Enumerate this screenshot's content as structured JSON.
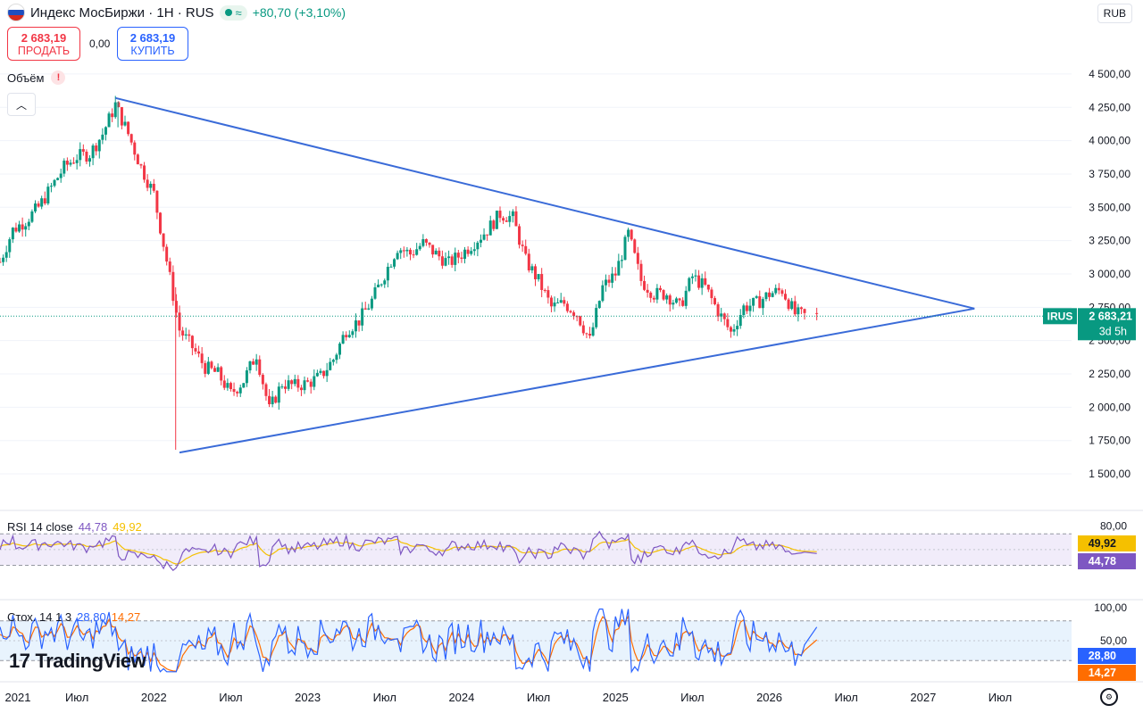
{
  "header": {
    "title": "Индекс МосБиржи · 1H · RUS",
    "status_icon": "dot-icon",
    "wave_icon": "wave-icon",
    "change": "+80,70 (+3,10%)",
    "currency": "RUB"
  },
  "trade": {
    "sell_price": "2 683,19",
    "sell_label": "ПРОДАТЬ",
    "spread": "0,00",
    "buy_price": "2 683,19",
    "buy_label": "КУПИТЬ"
  },
  "volume": {
    "label": "Объём",
    "warn": "!"
  },
  "collapse_icon": "chevron-up-icon",
  "price_axis": {
    "ticks": [
      "4 500,00",
      "4 250,00",
      "4 000,00",
      "3 750,00",
      "3 500,00",
      "3 250,00",
      "3 000,00",
      "2 750,00",
      "2 500,00",
      "2 250,00",
      "2 000,00",
      "1 750,00",
      "1 500,00"
    ],
    "last_tag_symbol": "IRUS",
    "last_tag_price": "2 683,21",
    "last_tag_time": "3d 5h"
  },
  "rsi": {
    "label": "RSI 14 close",
    "value_rsi": "44,78",
    "value_ma": "49,92",
    "ticks": [
      "80,00"
    ],
    "tag_ma": "49,92",
    "tag_rsi": "44,78"
  },
  "stoch": {
    "label": "Стох. 14 1 3",
    "value_k": "28,80",
    "value_d": "14,27",
    "ticks": [
      "100,00",
      "50,00"
    ],
    "tag_k": "28,80",
    "tag_d": "14,27"
  },
  "time_axis": [
    "2021",
    "Июл",
    "2022",
    "Июл",
    "2023",
    "Июл",
    "2024",
    "Июл",
    "2025",
    "Июл",
    "2026",
    "Июл",
    "2027",
    "Июл"
  ],
  "logo_text": "TradingView",
  "colors": {
    "up": "#089981",
    "down": "#f23645",
    "trendline": "#3a6bd8",
    "rsi": "#7e57c2",
    "rsi_ma": "#f5c000",
    "stoch_k": "#2962ff",
    "stoch_d": "#ff6d00",
    "rsi_band": "#f1ecfa",
    "stoch_band": "#e8f3fd",
    "last": "#089981"
  },
  "chart_data": {
    "type": "candlestick",
    "title": "Индекс МосБиржи · 1H · RUS",
    "ylim": [
      1420,
      4620
    ],
    "x_range": [
      "2021-01",
      "2027-10"
    ],
    "price_path": [
      [
        "2021-01",
        3090
      ],
      [
        "2021-02",
        3330
      ],
      [
        "2021-03",
        3400
      ],
      [
        "2021-04",
        3500
      ],
      [
        "2021-05",
        3650
      ],
      [
        "2021-06",
        3800
      ],
      [
        "2021-07",
        3880
      ],
      [
        "2021-08",
        3900
      ],
      [
        "2021-09",
        4050
      ],
      [
        "2021-10",
        4270
      ],
      [
        "2021-11",
        4050
      ],
      [
        "2021-12",
        3800
      ],
      [
        "2022-01",
        3600
      ],
      [
        "2022-02",
        3100
      ],
      [
        "2022-03",
        2580
      ],
      [
        "2022-04",
        2450
      ],
      [
        "2022-05",
        2300
      ],
      [
        "2022-06",
        2250
      ],
      [
        "2022-07",
        2100
      ],
      [
        "2022-08",
        2200
      ],
      [
        "2022-09",
        2400
      ],
      [
        "2022-10",
        1980
      ],
      [
        "2022-11",
        2180
      ],
      [
        "2022-12",
        2160
      ],
      [
        "2023-01",
        2180
      ],
      [
        "2023-02",
        2230
      ],
      [
        "2023-03",
        2360
      ],
      [
        "2023-04",
        2580
      ],
      [
        "2023-05",
        2650
      ],
      [
        "2023-06",
        2800
      ],
      [
        "2023-07",
        3000
      ],
      [
        "2023-08",
        3200
      ],
      [
        "2023-09",
        3150
      ],
      [
        "2023-10",
        3230
      ],
      [
        "2023-11",
        3150
      ],
      [
        "2023-12",
        3080
      ],
      [
        "2024-01",
        3150
      ],
      [
        "2024-02",
        3240
      ],
      [
        "2024-03",
        3330
      ],
      [
        "2024-04",
        3450
      ],
      [
        "2024-05",
        3420
      ],
      [
        "2024-06",
        3100
      ],
      [
        "2024-07",
        2950
      ],
      [
        "2024-08",
        2750
      ],
      [
        "2024-09",
        2780
      ],
      [
        "2024-10",
        2700
      ],
      [
        "2024-11",
        2500
      ],
      [
        "2024-12",
        2900
      ],
      [
        "2025-01",
        3000
      ],
      [
        "2025-02",
        3300
      ],
      [
        "2025-03",
        2950
      ],
      [
        "2025-04",
        2850
      ],
      [
        "2025-05",
        2850
      ],
      [
        "2025-06",
        2750
      ],
      [
        "2025-07",
        2980
      ],
      [
        "2025-08",
        2900
      ],
      [
        "2025-09",
        2720
      ],
      [
        "2025-10",
        2560
      ],
      [
        "2025-11",
        2750
      ],
      [
        "2025-12",
        2780
      ],
      [
        "2026-01",
        2850
      ],
      [
        "2026-02",
        2880
      ],
      [
        "2026-03",
        2700
      ],
      [
        "2026-04",
        2683
      ]
    ],
    "extremes": {
      "high": 4292,
      "low": 1681
    },
    "trendlines": [
      {
        "from": [
          "2021-10",
          4320
        ],
        "to": [
          "2027-05",
          2740
        ]
      },
      {
        "from": [
          "2022-03",
          1660
        ],
        "to": [
          "2027-05",
          2740
        ]
      }
    ],
    "last_price": 2683.21,
    "rsi": {
      "period": 14,
      "last": 44.78,
      "ma_last": 49.92,
      "bands": [
        70,
        30
      ]
    },
    "stoch": {
      "params": "14 1 3",
      "k_last": 28.8,
      "d_last": 14.27,
      "bands": [
        80,
        20
      ]
    }
  }
}
